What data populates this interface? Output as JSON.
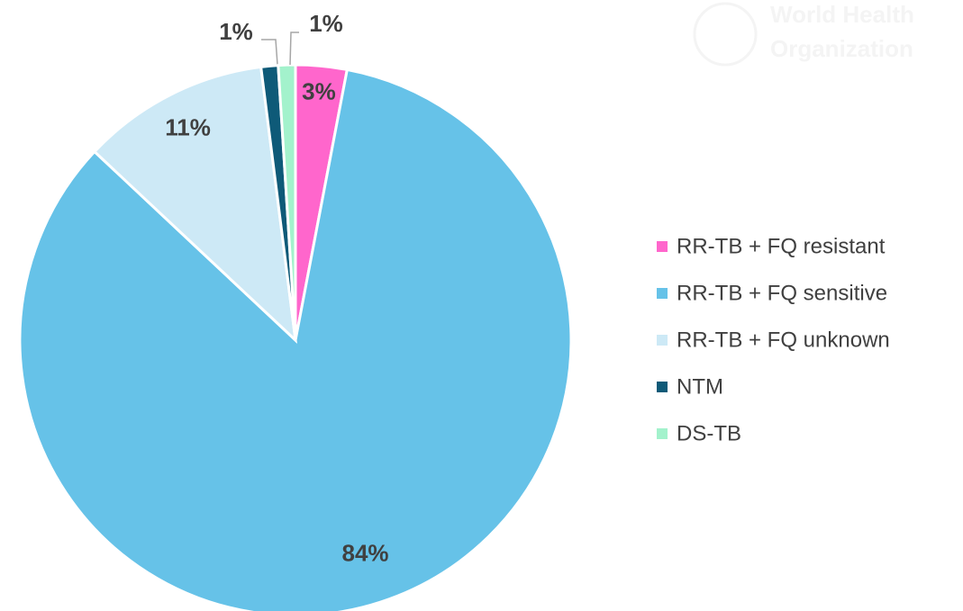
{
  "chart_data": {
    "type": "pie",
    "categories": [
      "RR-TB + FQ resistant",
      "RR-TB + FQ sensitive",
      "RR-TB + FQ unknown",
      "NTM",
      "DS-TB"
    ],
    "values": [
      3,
      84,
      11,
      1,
      1
    ],
    "value_labels": [
      "3%",
      "84%",
      "11%",
      "1%",
      "1%"
    ],
    "colors": [
      "#ff66cc",
      "#66c2e8",
      "#cde9f6",
      "#0e5a78",
      "#a3f2cc"
    ],
    "legend": "right"
  },
  "watermark": [
    "World Health",
    "Organization"
  ]
}
